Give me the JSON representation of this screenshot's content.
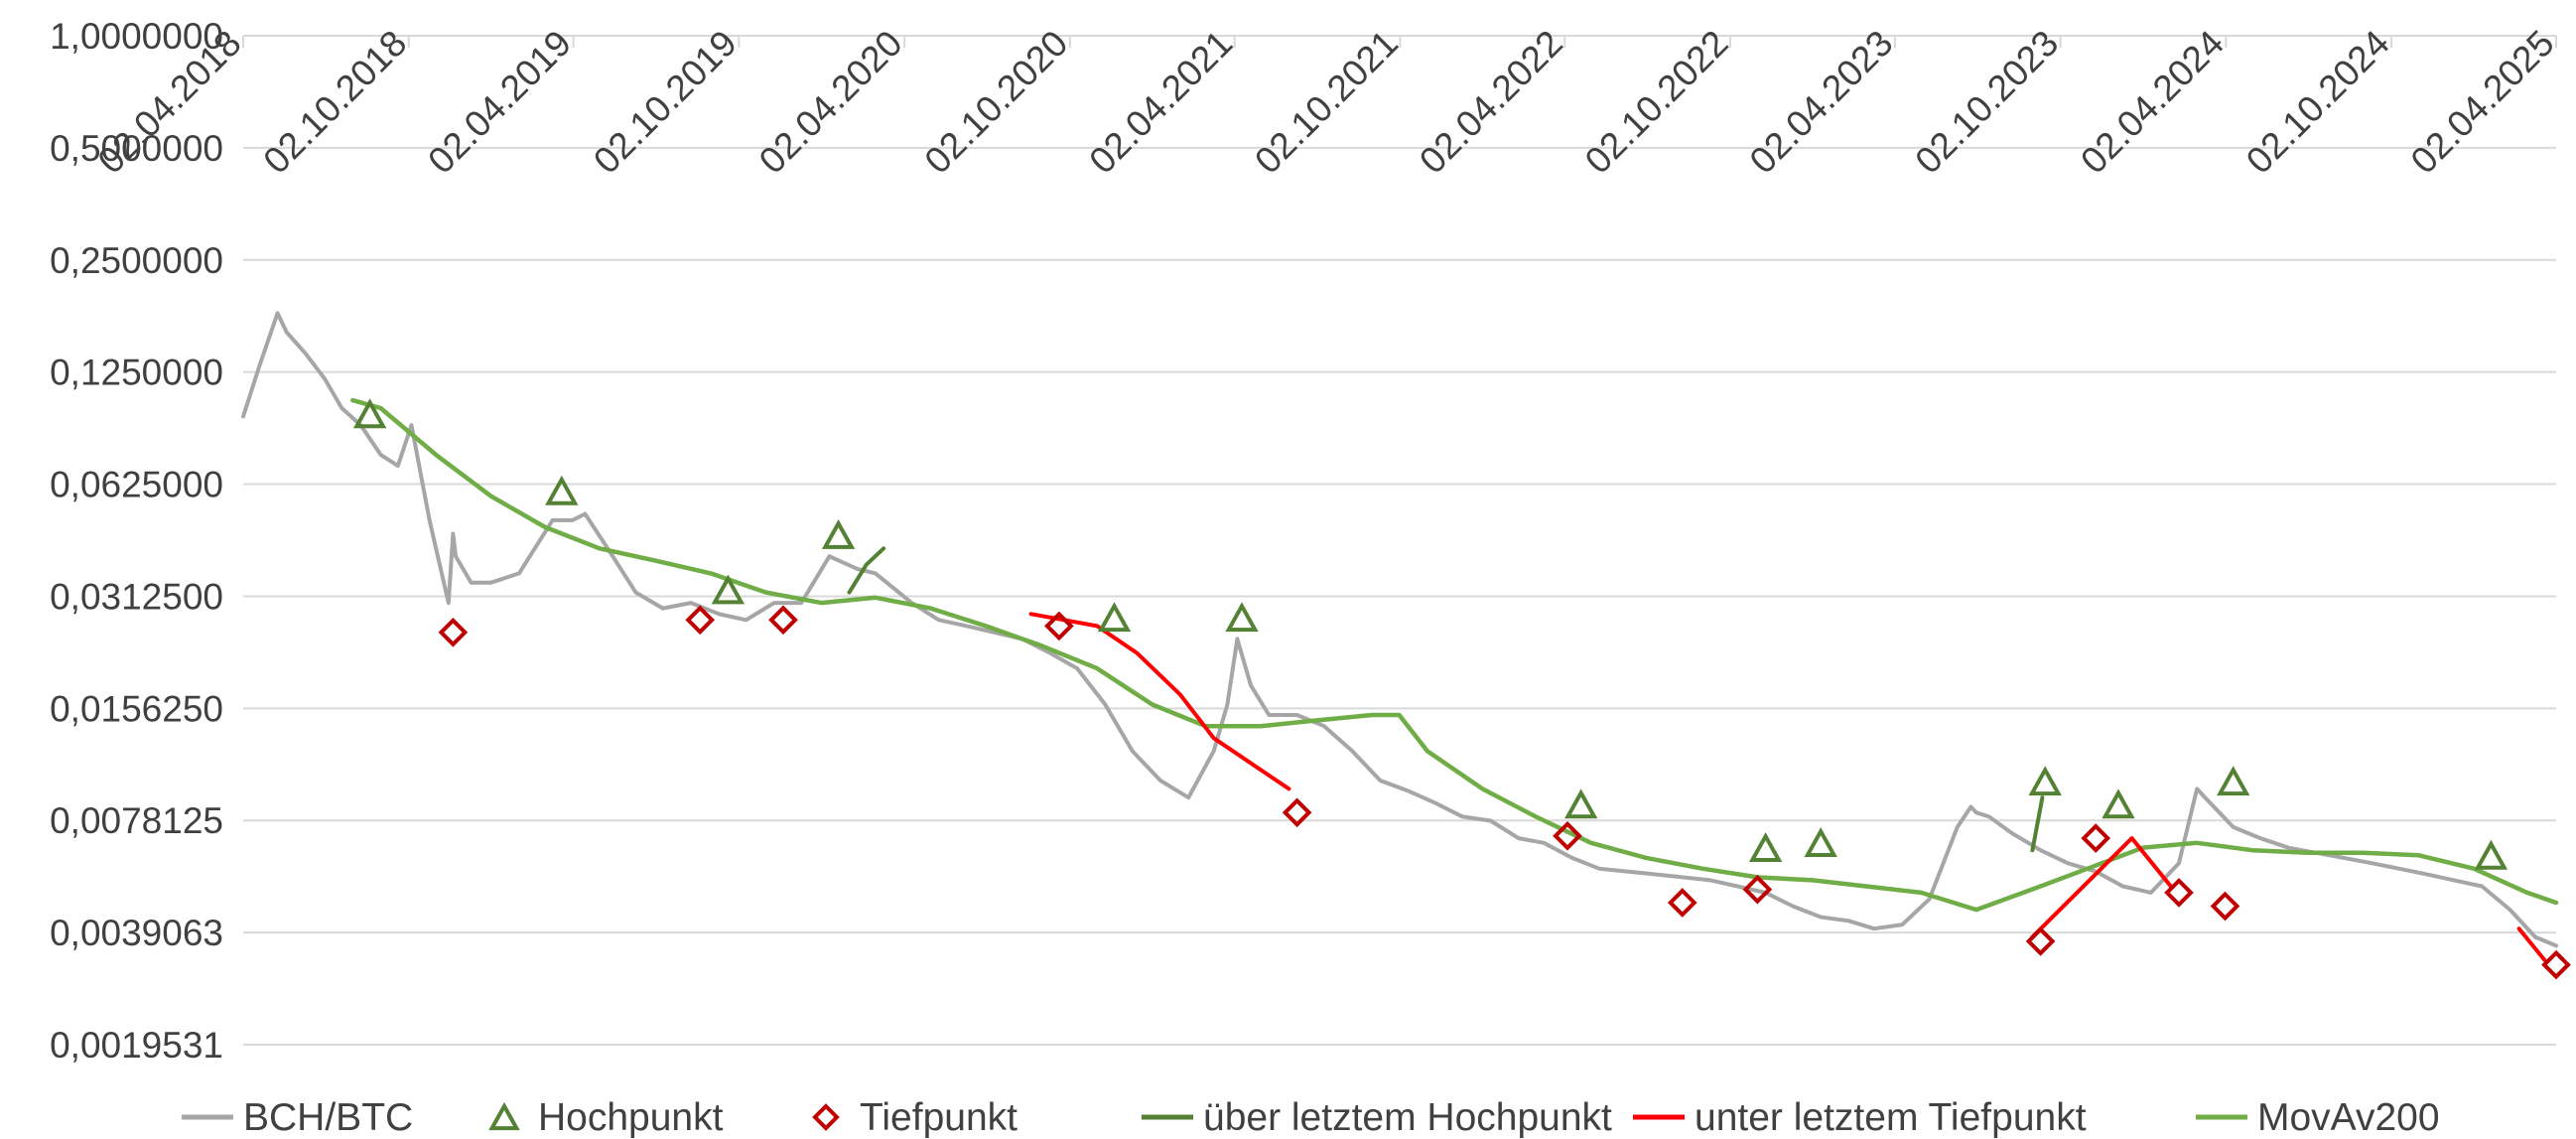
{
  "chart_data": {
    "type": "line",
    "title": "",
    "xlabel": "",
    "ylabel": "",
    "yscale": "log2",
    "ylim": [
      0.0019531,
      1.0
    ],
    "xlim": [
      "2018-04-02",
      "2025-04-02"
    ],
    "grid": true,
    "legend_position": "bottom",
    "y_ticks": [
      "1,0000000",
      "0,5000000",
      "0,2500000",
      "0,1250000",
      "0,0625000",
      "0,0312500",
      "0,0156250",
      "0,0078125",
      "0,0039063",
      "0,0019531"
    ],
    "y_tick_values": [
      1.0,
      0.5,
      0.25,
      0.125,
      0.0625,
      0.03125,
      0.015625,
      0.0078125,
      0.0039063,
      0.0019531
    ],
    "x_ticks": [
      "02.04.2018",
      "02.10.2018",
      "02.04.2019",
      "02.10.2019",
      "02.04.2020",
      "02.10.2020",
      "02.04.2021",
      "02.10.2021",
      "02.04.2022",
      "02.10.2022",
      "02.04.2023",
      "02.10.2023",
      "02.04.2024",
      "02.10.2024",
      "02.04.2025"
    ],
    "x_tick_dates": [
      "2018-04-02",
      "2018-10-02",
      "2019-04-02",
      "2019-10-02",
      "2020-04-02",
      "2020-10-02",
      "2021-04-02",
      "2021-10-02",
      "2022-04-02",
      "2022-10-02",
      "2023-04-02",
      "2023-10-02",
      "2024-04-02",
      "2024-10-02",
      "2025-04-02"
    ],
    "colors": {
      "price": "#a6a6a6",
      "above_high": "#548235",
      "below_low": "#ff0000",
      "movav": "#70ad47",
      "high_marker": "#548235",
      "low_marker": "#c00000",
      "grid": "#d9d9d9"
    },
    "series": [
      {
        "name": "BCH/BTC",
        "dates": [
          "2018-04-02",
          "2018-04-20",
          "2018-05-10",
          "2018-05-20",
          "2018-06-10",
          "2018-07-01",
          "2018-07-20",
          "2018-08-10",
          "2018-09-01",
          "2018-09-20",
          "2018-10-05",
          "2018-10-25",
          "2018-11-15",
          "2018-11-20",
          "2018-11-23",
          "2018-12-10",
          "2019-01-01",
          "2019-02-01",
          "2019-03-10",
          "2019-04-01",
          "2019-04-15",
          "2019-05-10",
          "2019-06-10",
          "2019-07-10",
          "2019-08-10",
          "2019-09-10",
          "2019-10-10",
          "2019-11-10",
          "2019-12-10",
          "2020-01-10",
          "2020-02-10",
          "2020-03-01",
          "2020-03-20",
          "2020-04-10",
          "2020-05-10",
          "2020-06-10",
          "2020-07-10",
          "2020-08-10",
          "2020-09-10",
          "2020-10-10",
          "2020-11-10",
          "2020-12-10",
          "2021-01-10",
          "2021-02-10",
          "2021-03-10",
          "2021-03-25",
          "2021-04-05",
          "2021-04-20",
          "2021-05-10",
          "2021-06-10",
          "2021-07-10",
          "2021-08-10",
          "2021-09-10",
          "2021-10-10",
          "2021-11-10",
          "2021-12-10",
          "2022-01-10",
          "2022-02-10",
          "2022-03-10",
          "2022-04-10",
          "2022-05-10",
          "2022-06-10",
          "2022-07-10",
          "2022-08-10",
          "2022-09-10",
          "2022-10-10",
          "2022-11-10",
          "2022-12-10",
          "2023-01-10",
          "2023-02-10",
          "2023-03-10",
          "2023-04-10",
          "2023-05-10",
          "2023-06-10",
          "2023-06-25",
          "2023-07-01",
          "2023-07-15",
          "2023-08-10",
          "2023-09-10",
          "2023-10-10",
          "2023-11-10",
          "2023-12-10",
          "2024-01-10",
          "2024-02-10",
          "2024-03-01",
          "2024-03-10",
          "2024-04-10",
          "2024-05-10",
          "2024-06-10",
          "2024-07-10",
          "2024-08-10",
          "2024-09-10",
          "2024-10-10",
          "2024-11-10",
          "2024-12-10",
          "2025-01-10",
          "2025-02-10",
          "2025-03-10",
          "2025-04-02"
        ],
        "values": [
          0.095,
          0.13,
          0.18,
          0.16,
          0.14,
          0.12,
          0.1,
          0.09,
          0.075,
          0.07,
          0.09,
          0.05,
          0.03,
          0.046,
          0.04,
          0.034,
          0.034,
          0.036,
          0.05,
          0.05,
          0.052,
          0.042,
          0.032,
          0.029,
          0.03,
          0.028,
          0.027,
          0.03,
          0.03,
          0.04,
          0.037,
          0.036,
          0.033,
          0.03,
          0.027,
          0.026,
          0.025,
          0.024,
          0.022,
          0.02,
          0.016,
          0.012,
          0.01,
          0.009,
          0.012,
          0.016,
          0.024,
          0.018,
          0.015,
          0.015,
          0.014,
          0.012,
          0.01,
          0.0094,
          0.0087,
          0.008,
          0.0078,
          0.007,
          0.0068,
          0.0062,
          0.0058,
          0.0057,
          0.0056,
          0.0055,
          0.0054,
          0.0052,
          0.005,
          0.0046,
          0.0043,
          0.0042,
          0.004,
          0.0041,
          0.0048,
          0.0075,
          0.0085,
          0.0082,
          0.008,
          0.0072,
          0.0065,
          0.006,
          0.0057,
          0.0052,
          0.005,
          0.006,
          0.0095,
          0.009,
          0.0075,
          0.007,
          0.0066,
          0.0064,
          0.0062,
          0.006,
          0.0058,
          0.0056,
          0.0054,
          0.0052,
          0.0045,
          0.0038,
          0.0036
        ]
      },
      {
        "name": "Hochpunkt",
        "dates": [
          "2018-08-20",
          "2019-03-20",
          "2019-09-20",
          "2020-01-20",
          "2020-11-20",
          "2021-04-10",
          "2022-04-20",
          "2022-11-10",
          "2023-01-10",
          "2023-09-15",
          "2023-12-05",
          "2024-04-10",
          "2025-01-20"
        ],
        "values": [
          0.095,
          0.059,
          0.032,
          0.045,
          0.027,
          0.027,
          0.0085,
          0.0065,
          0.0067,
          0.0098,
          0.0085,
          0.0098,
          0.0062
        ]
      },
      {
        "name": "Tiefpunkt",
        "dates": [
          "2018-11-20",
          "2019-08-20",
          "2019-11-20",
          "2020-09-20",
          "2021-06-10",
          "2022-04-05",
          "2022-08-10",
          "2022-11-01",
          "2023-09-10",
          "2023-11-10",
          "2024-02-10",
          "2024-04-01",
          "2025-04-02"
        ],
        "values": [
          0.025,
          0.027,
          0.027,
          0.026,
          0.0082,
          0.0071,
          0.0047,
          0.0051,
          0.0037,
          0.007,
          0.005,
          0.0046,
          0.0032
        ]
      },
      {
        "name": "über letztem Hochpunkt",
        "dates": [
          "2020-02-01",
          "2020-02-20",
          "2020-03-10",
          "2023-09-01",
          "2023-09-12"
        ],
        "values": [
          0.032,
          0.038,
          0.042,
          0.0065,
          0.009
        ]
      },
      {
        "name": "unter letztem Tiefpunkt",
        "dates": [
          "2020-08-20",
          "2020-11-01",
          "2020-12-15",
          "2021-02-01",
          "2021-03-10",
          "2021-06-01",
          "2022-04-01",
          "2022-08-01",
          "2022-12-10",
          "2023-05-01",
          "2023-09-01",
          "2023-12-20",
          "2024-02-01",
          "2025-02-20",
          "2025-03-20"
        ],
        "values": [
          0.028,
          0.026,
          0.022,
          0.017,
          0.013,
          0.0095,
          0.008,
          0.0047,
          0.0046,
          0.0042,
          0.0038,
          0.007,
          0.0052,
          0.004,
          0.0033
        ]
      },
      {
        "name": "MovAv200",
        "dates": [
          "2018-08-01",
          "2018-09-01",
          "2018-11-01",
          "2019-01-01",
          "2019-03-01",
          "2019-05-01",
          "2019-07-01",
          "2019-09-01",
          "2019-11-01",
          "2020-01-01",
          "2020-03-01",
          "2020-05-01",
          "2020-07-01",
          "2020-09-01",
          "2020-11-01",
          "2021-01-01",
          "2021-03-01",
          "2021-05-01",
          "2021-07-01",
          "2021-09-01",
          "2021-10-01",
          "2021-11-01",
          "2022-01-01",
          "2022-03-01",
          "2022-05-01",
          "2022-07-01",
          "2022-09-01",
          "2022-11-01",
          "2023-01-01",
          "2023-03-01",
          "2023-05-01",
          "2023-07-01",
          "2023-09-10",
          "2023-11-01",
          "2024-01-01",
          "2024-03-01",
          "2024-05-01",
          "2024-07-01",
          "2024-09-01",
          "2024-11-01",
          "2025-01-01",
          "2025-03-01",
          "2025-04-02"
        ],
        "values": [
          0.105,
          0.1,
          0.075,
          0.058,
          0.048,
          0.042,
          0.039,
          0.036,
          0.032,
          0.03,
          0.031,
          0.029,
          0.026,
          0.023,
          0.02,
          0.016,
          0.014,
          0.014,
          0.0145,
          0.015,
          0.015,
          0.012,
          0.0095,
          0.008,
          0.0068,
          0.0062,
          0.0058,
          0.0055,
          0.0054,
          0.0052,
          0.005,
          0.0045,
          0.0052,
          0.0058,
          0.0066,
          0.0068,
          0.0065,
          0.0064,
          0.0064,
          0.0063,
          0.0058,
          0.005,
          0.0047
        ]
      }
    ],
    "legend": [
      "BCH/BTC",
      "Hochpunkt",
      "Tiefpunkt",
      "über letztem Hochpunkt",
      "unter letztem Tiefpunkt",
      "MovAv200"
    ]
  }
}
